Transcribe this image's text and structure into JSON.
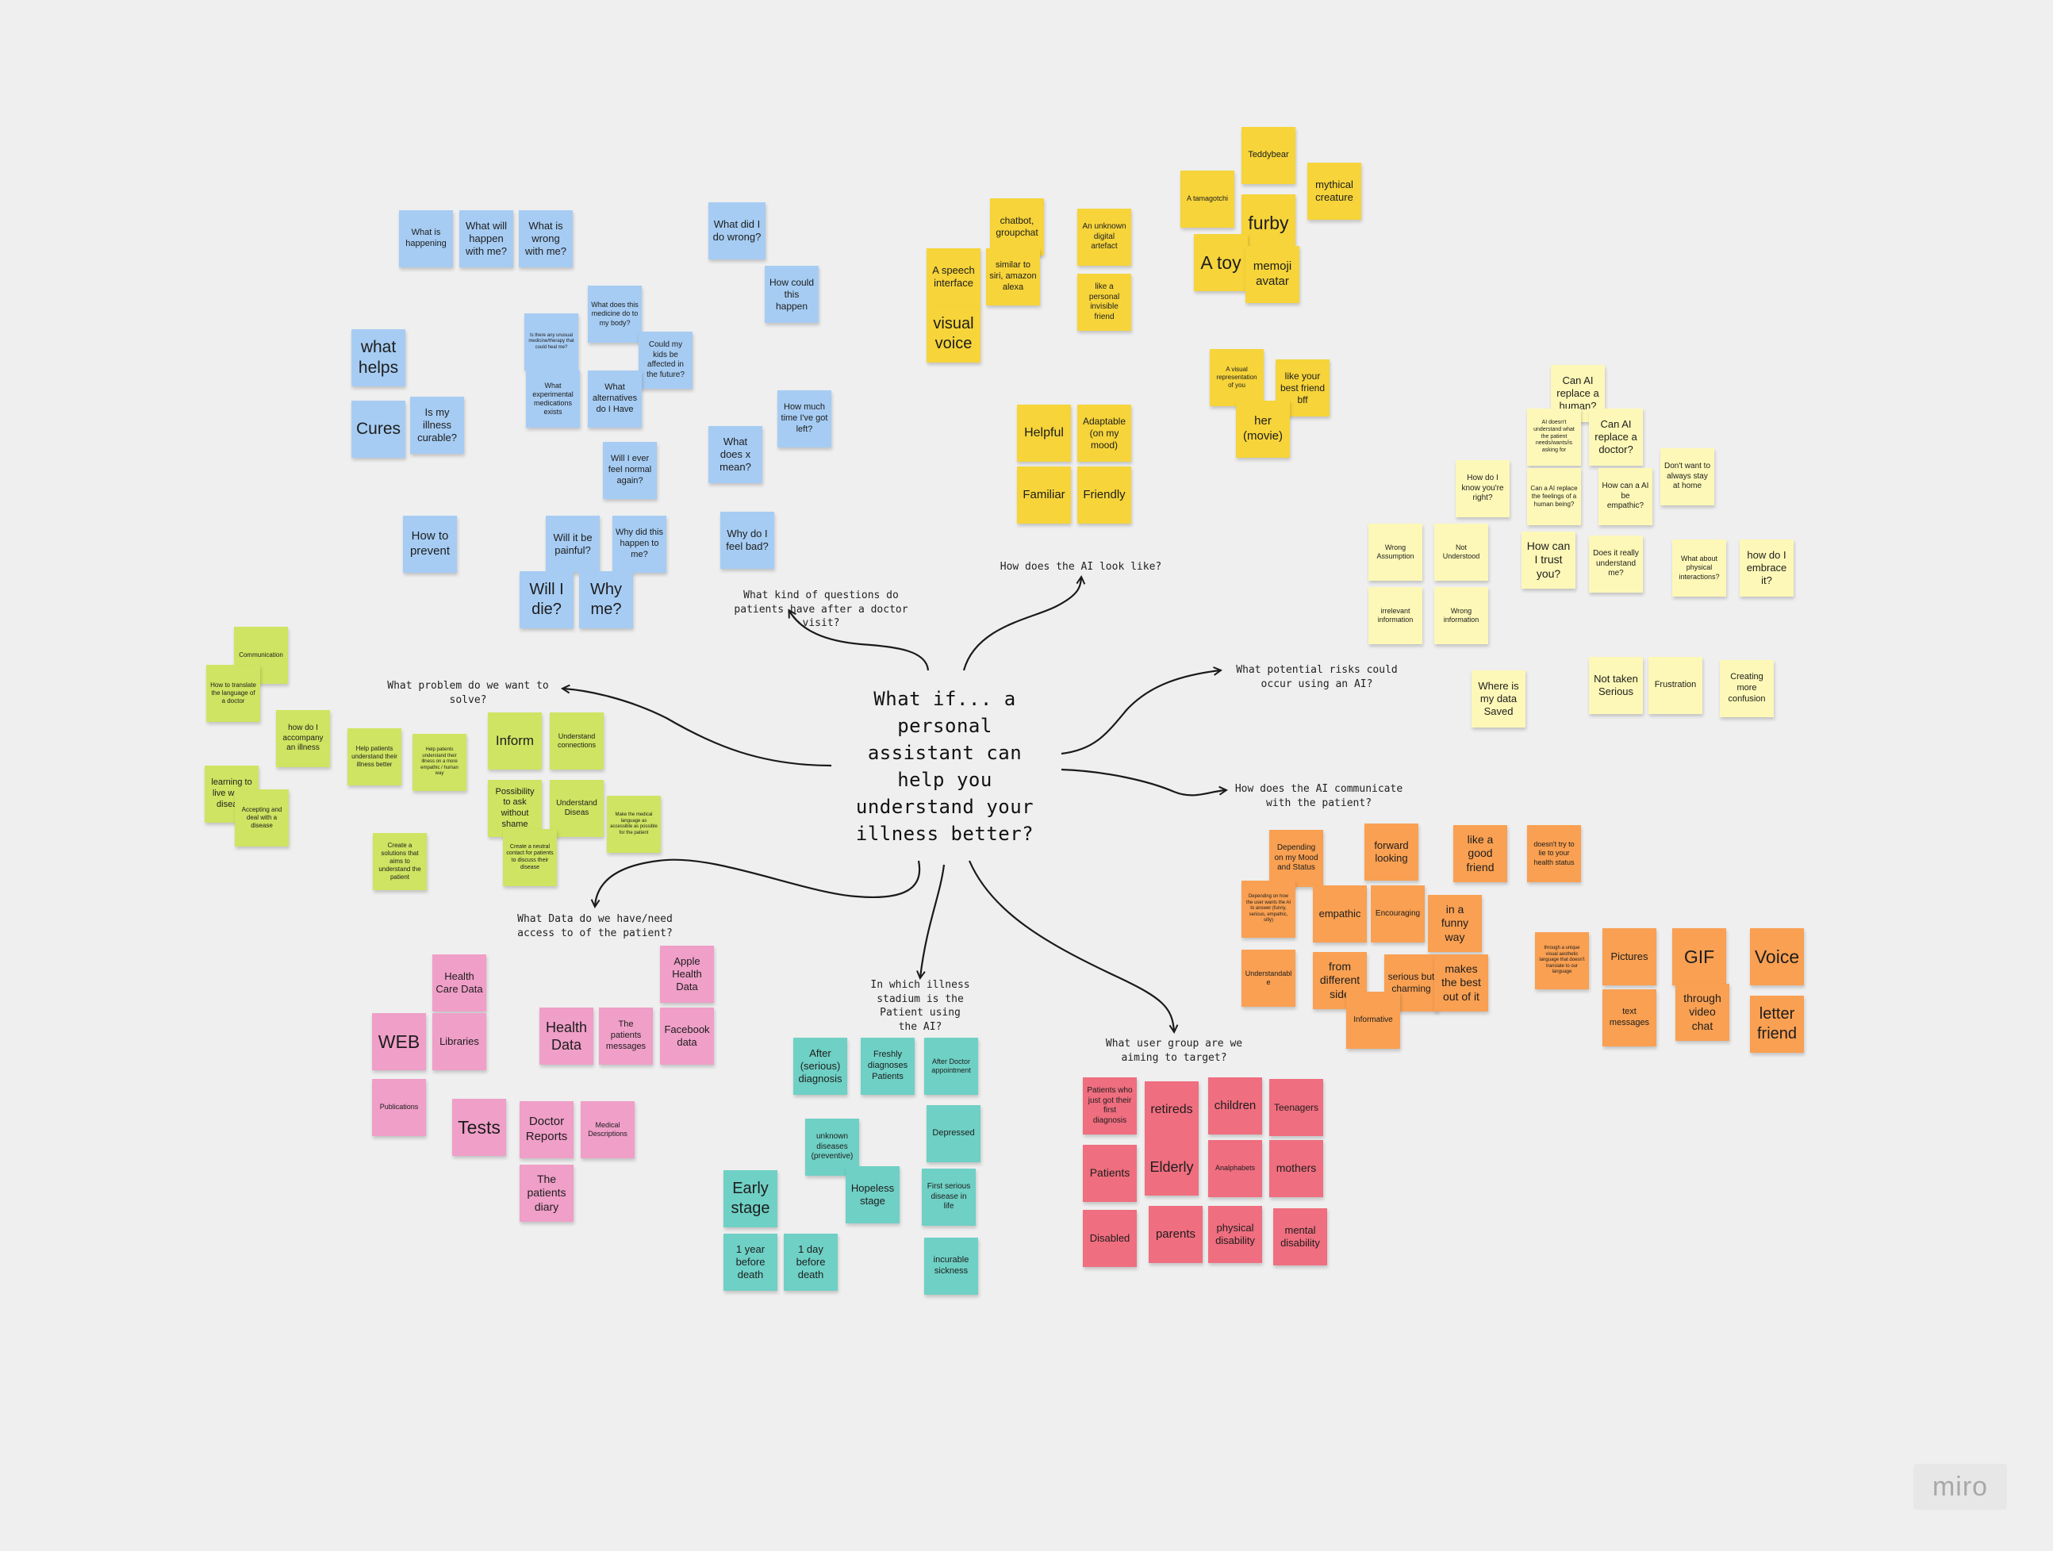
{
  "central_topic": "What if... a personal assistant can help you understand your illness better?",
  "colors": {
    "blue": "#a6ccf3",
    "yellow": "#f6d43a",
    "lightyellow": "#fdf8b7",
    "green": "#cfe462",
    "pink": "#ef9fc8",
    "teal": "#6fd0c5",
    "orange": "#f9a052",
    "red": "#ef6e7f",
    "line": "#1a1a1a"
  },
  "questions": [
    "What kind of questions do patients have after a doctor visit?",
    "How does the AI look like?",
    "What problem do we want to solve?",
    "What potential risks could occur using an AI?",
    "How does the AI communicate with the patient?",
    "What Data do we have/need access to of the patient?",
    "In which illness stadium is the Patient using the AI?",
    "What user group are we aiming to target?"
  ],
  "stickies": {
    "blue": [
      "What is happening",
      "What will happen with me?",
      "What is wrong with me?",
      "What did I do wrong?",
      "How could this happen",
      "What does this medicine do to my body?",
      "Is there any unusual medicine/therapy that could heal me?",
      "Could my kids be affected in the future?",
      "What experimental medications exists",
      "What alternatives do I Have",
      "what helps",
      "Cures",
      "Is my illness curable?",
      "How much time I've got left?",
      "What does x mean?",
      "Will I ever feel normal again?",
      "How to prevent",
      "Will it be painful?",
      "Why did this happen to me?",
      "Why do I feel bad?",
      "Will I die?",
      "Why me?"
    ],
    "yellow": [
      "chatbot, groupchat",
      "An unknown digital artefact",
      "A speech interface",
      "similar to siri, amazon alexa",
      "like a personal invisible friend",
      "visual voice",
      "Teddybear",
      "A tamagotchi",
      "mythical creature",
      "furby",
      "A toy",
      "memoji avatar",
      "A visual representation of you",
      "like your best friend bff",
      "her (movie)",
      "Helpful",
      "Adaptable (on my mood)",
      "Familiar",
      "Friendly"
    ],
    "lightyellow": [
      "Can AI replace a human?",
      "AI doesn't understand what the patient needs/wants/is asking for",
      "Can AI replace a doctor?",
      "How do I know you're right?",
      "Can a AI replace the feelings of a human being?",
      "How can a AI be empathic?",
      "Don't want to always stay at home",
      "Wrong Assumption",
      "Not Understood",
      "How can I trust you?",
      "Does it really understand me?",
      "What about physical interactions?",
      "how do I embrace it?",
      "irrelevant information",
      "Wrong information",
      "Where is my data Saved",
      "Not taken Serious",
      "Frustration",
      "Creating more confusion"
    ],
    "green": [
      "Communication",
      "How to translate the language of a doctor",
      "how do I accompany an illness",
      "Help patients understand their illness better",
      "Help patients understand their illness on a more empathic / human way",
      "Inform",
      "Understand connections",
      "learning to live with a disease",
      "Accepting and deal with a disease",
      "Possibility to ask without shame",
      "Understand Diseas",
      "Make the medical language as accessible as possible for the patient",
      "Create a solutions that aims to understand the patient",
      "Create a neutral contact for patients to discuss their disease"
    ],
    "pink": [
      "Health Care Data",
      "Apple Health Data",
      "WEB",
      "Libraries",
      "Health Data",
      "The patients messages",
      "Facebook data",
      "Publications",
      "Tests",
      "Doctor Reports",
      "Medical Descriptions",
      "The patients diary"
    ],
    "teal": [
      "After (serious) diagnosis",
      "Freshly diagnoses Patients",
      "After Doctor appointment",
      "unknown diseases (preventive)",
      "Depressed",
      "Hopeless stage",
      "Early stage",
      "First serious disease in life",
      "1 year before death",
      "1 day before death",
      "incurable sickness"
    ],
    "orange": [
      "Depending on my Mood and Status",
      "forward looking",
      "like a good friend",
      "doesn't try to lie to your health status",
      "Depending on how the user wants the AI to answer (funny, serious, empathic, silly)",
      "empathic",
      "Encouraging",
      "in a funny way",
      "through a unique visual aesthetic language that doesn't translate to our language",
      "Pictures",
      "GIF",
      "Voice",
      "Understandable",
      "from different side",
      "serious but charming",
      "makes the best out of it",
      "Informative",
      "text messages",
      "through video chat",
      "letter friend"
    ],
    "red": [
      "Patients who just got their first diagnosis",
      "retireds",
      "children",
      "Teenagers",
      "Patients",
      "Elderly",
      "Analphabets",
      "mothers",
      "Disabled",
      "parents",
      "physical disability",
      "mental disability"
    ]
  },
  "brand": "miro"
}
